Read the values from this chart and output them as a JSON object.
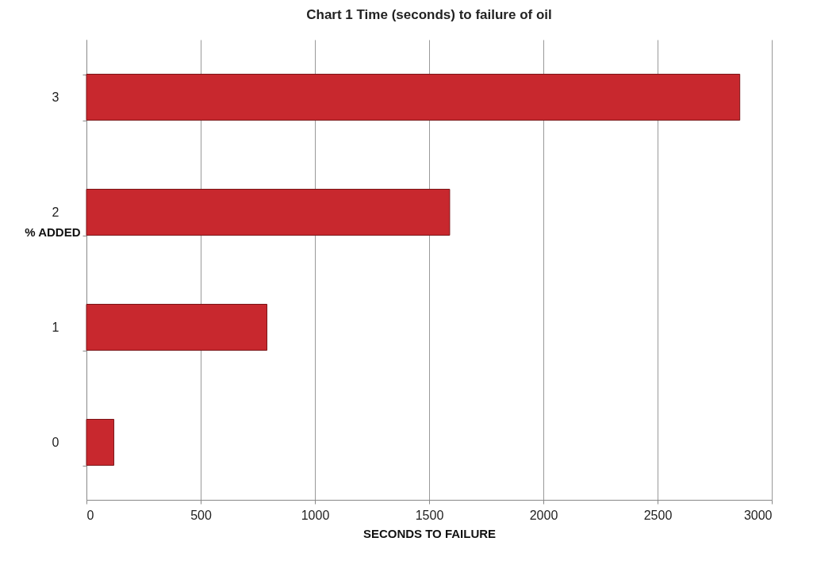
{
  "chart_data": {
    "type": "bar",
    "orientation": "horizontal",
    "title": "Chart 1 Time (seconds) to failure of oil",
    "xlabel": "SECONDS TO FAILURE",
    "ylabel": "% ADDED",
    "categories": [
      "3",
      "2",
      "1",
      "0"
    ],
    "values": [
      2860,
      1590,
      790,
      120
    ],
    "color": "#c8282e",
    "xlim": [
      0,
      3000
    ],
    "xticks": [
      0,
      500,
      1000,
      1500,
      2000,
      2500,
      3000
    ],
    "grid": "x"
  }
}
